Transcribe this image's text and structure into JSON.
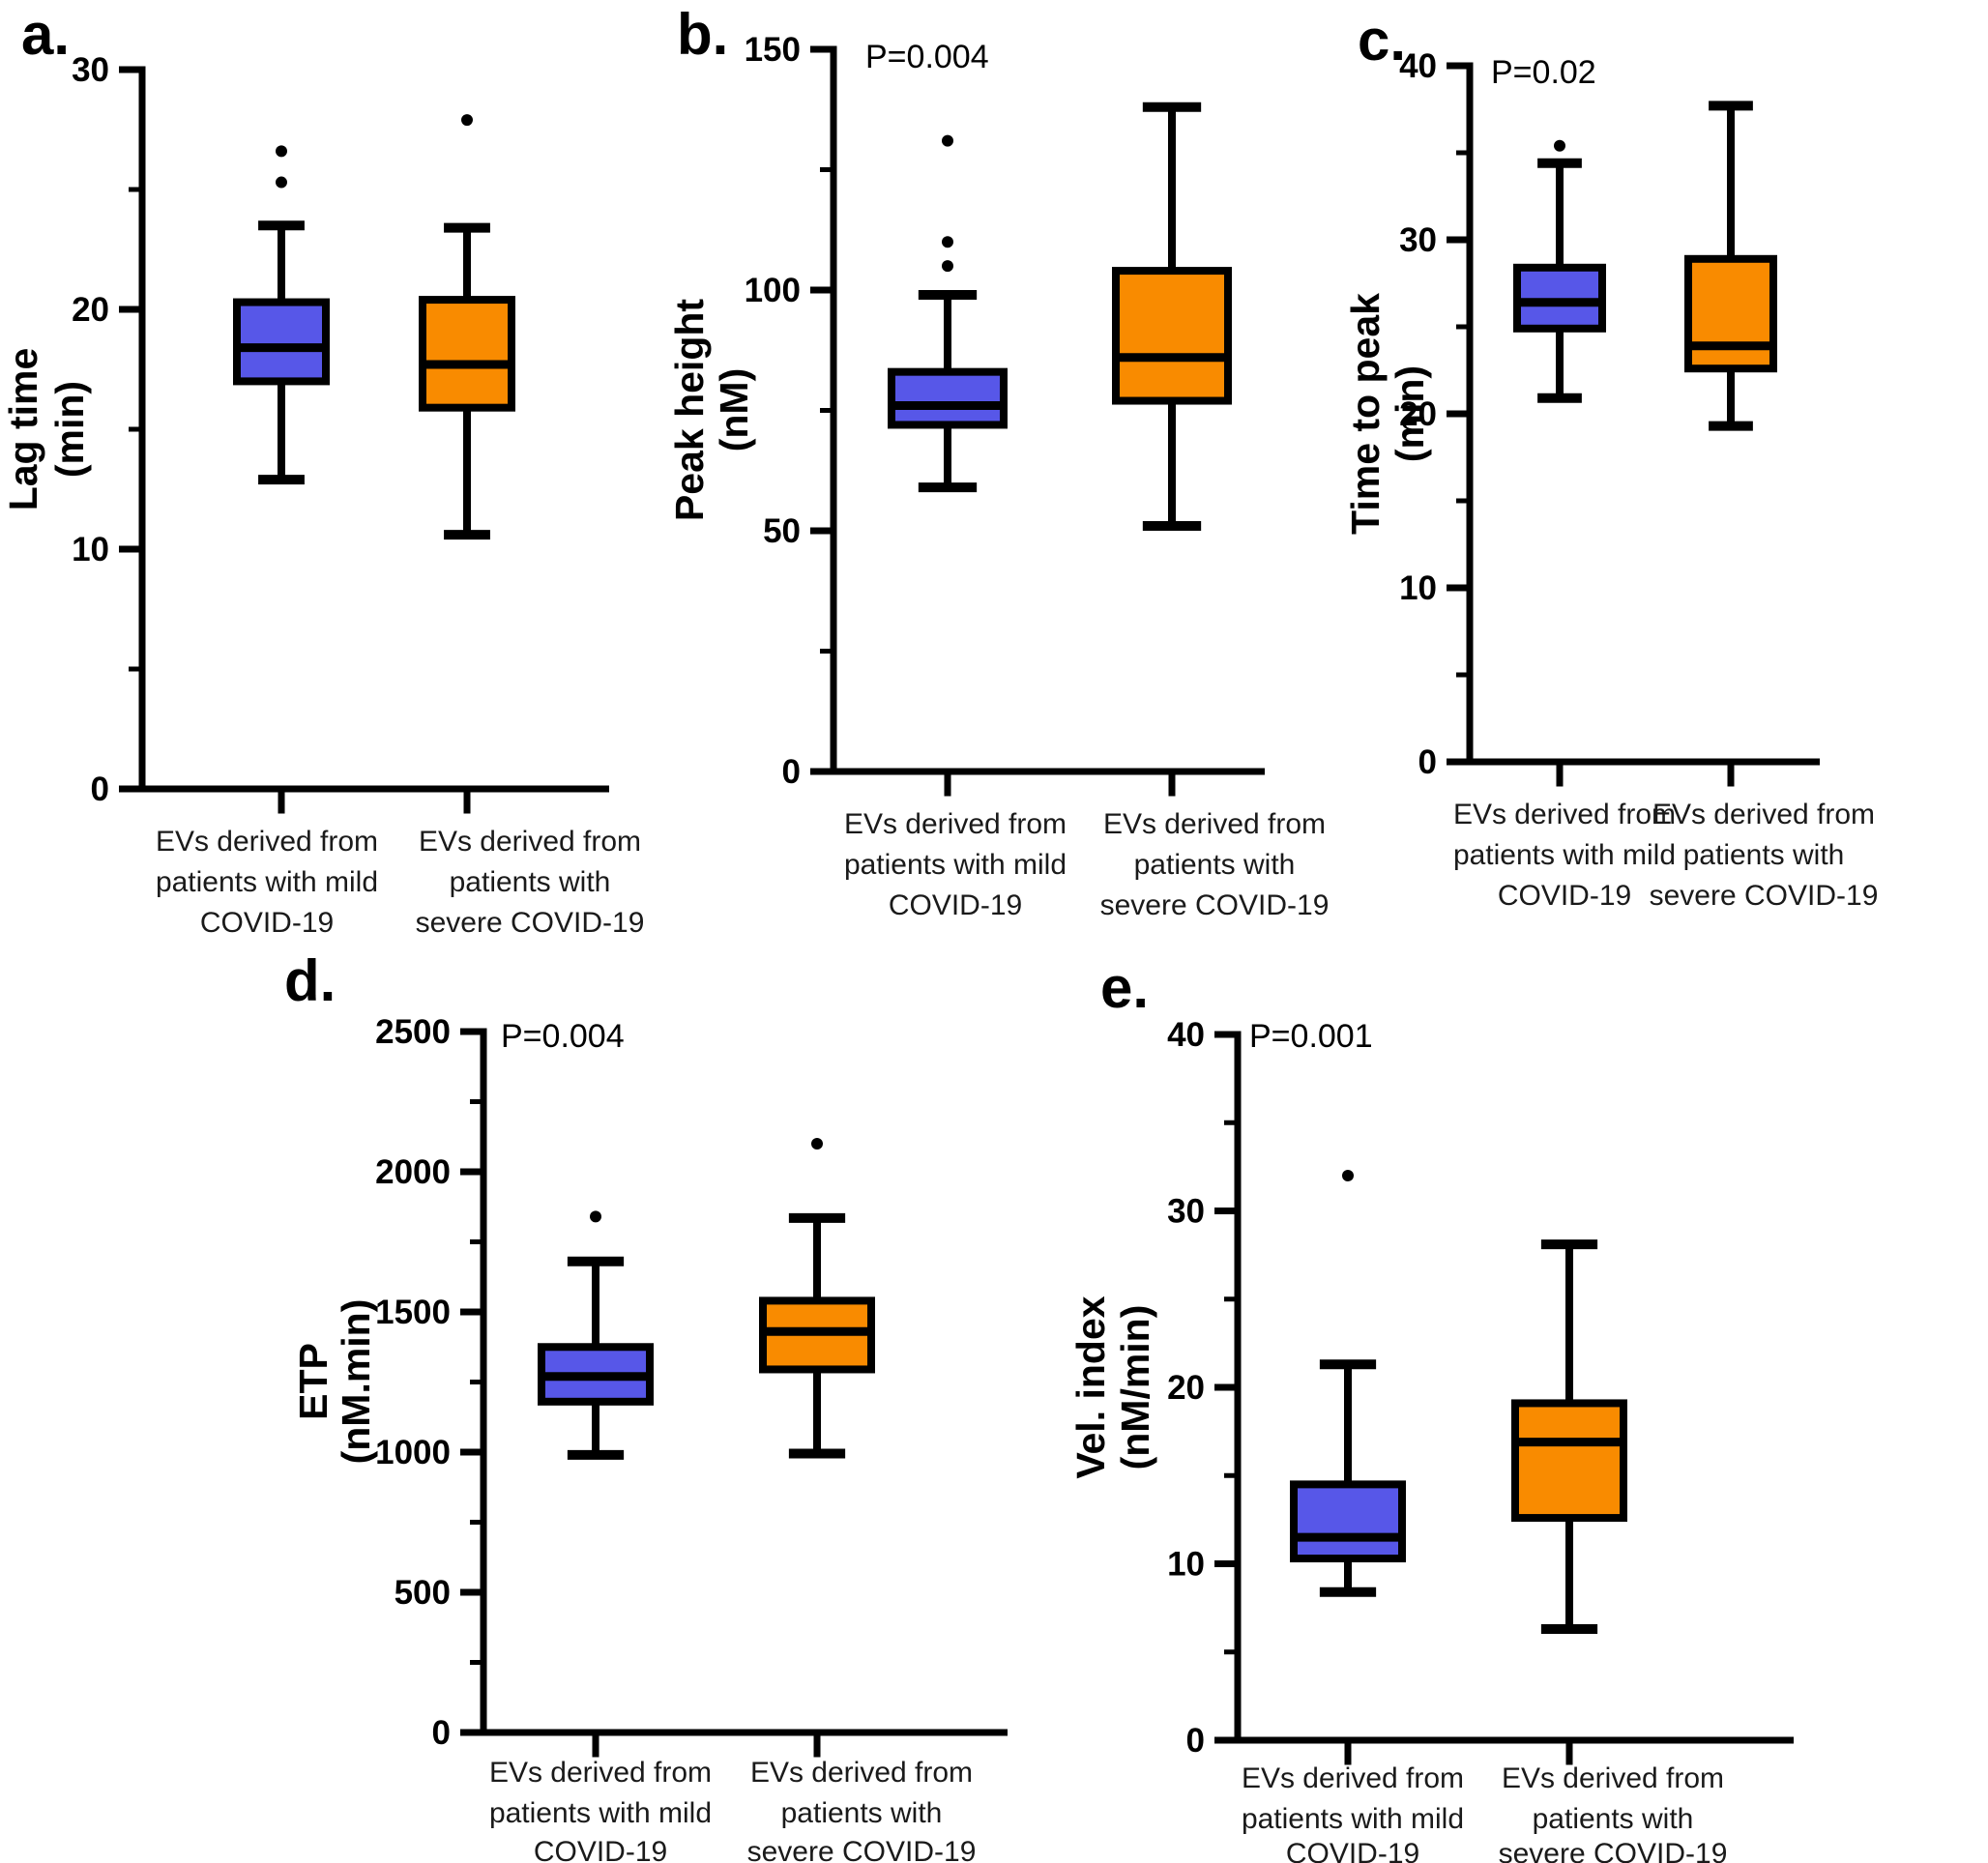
{
  "figure": {
    "background": "#ffffff",
    "colors": {
      "mild": "#5757e8",
      "severe": "#f98b00",
      "stroke": "#000000"
    },
    "group_labels": {
      "mild": [
        "EVs derived from",
        "patients with mild",
        "COVID-19"
      ],
      "severe": [
        "EVs derived from",
        "patients with",
        "severe COVID-19"
      ]
    }
  },
  "chart_data": [
    {
      "type": "box",
      "panel": "a",
      "panel_label": "a.",
      "p_value": null,
      "ylabel": "Lag time (min)",
      "ylabel_lines": [
        "Lag time",
        "(min)"
      ],
      "ylim": [
        0,
        30
      ],
      "yticks": [
        0,
        10,
        20,
        30
      ],
      "yticks_minor": [
        5,
        15,
        25
      ],
      "categories": [
        "EVs derived from patients with mild COVID-19",
        "EVs derived from patients with severe COVID-19"
      ],
      "series": [
        {
          "name": "EVs derived from patients with mild COVID-19",
          "key": "mild",
          "whisker_low": 12.9,
          "q1": 17.0,
          "median": 18.4,
          "q3": 20.3,
          "whisker_high": 23.5,
          "outliers": [
            25.3,
            26.6
          ]
        },
        {
          "name": "EVs derived from patients with severe COVID-19",
          "key": "severe",
          "whisker_low": 10.6,
          "q1": 15.9,
          "median": 17.7,
          "q3": 20.4,
          "whisker_high": 23.4,
          "outliers": [
            27.9
          ]
        }
      ]
    },
    {
      "type": "box",
      "panel": "b",
      "panel_label": "b.",
      "p_value": "P=0.004",
      "ylabel": "Peak height (nM)",
      "ylabel_lines": [
        "Peak height",
        "(nM)"
      ],
      "ylim": [
        0,
        150
      ],
      "yticks": [
        0,
        50,
        100,
        150
      ],
      "yticks_minor": [
        25,
        75,
        125
      ],
      "categories": [
        "EVs derived from patients with mild COVID-19",
        "EVs derived from patients with severe COVID-19"
      ],
      "series": [
        {
          "name": "EVs derived from patients with mild COVID-19",
          "key": "mild",
          "whisker_low": 59,
          "q1": 72,
          "median": 76,
          "q3": 83,
          "whisker_high": 99,
          "outliers": [
            105,
            110,
            131
          ]
        },
        {
          "name": "EVs derived from patients with severe COVID-19",
          "key": "severe",
          "whisker_low": 51,
          "q1": 77,
          "median": 86,
          "q3": 104,
          "whisker_high": 138,
          "outliers": []
        }
      ]
    },
    {
      "type": "box",
      "panel": "c",
      "panel_label": "c.",
      "p_value": "P=0.02",
      "ylabel": "Time to peak (min)",
      "ylabel_lines": [
        "Time to peak",
        "(min)"
      ],
      "ylim": [
        0,
        40
      ],
      "yticks": [
        0,
        10,
        20,
        30,
        40
      ],
      "yticks_minor": [
        5,
        15,
        25,
        35
      ],
      "categories": [
        "EVs derived from patients with mild COVID-19",
        "EVs derived from patients with severe COVID-19"
      ],
      "series": [
        {
          "name": "EVs derived from patients with mild COVID-19",
          "key": "mild",
          "whisker_low": 20.9,
          "q1": 24.9,
          "median": 26.4,
          "q3": 28.4,
          "whisker_high": 34.4,
          "outliers": [
            35.4
          ]
        },
        {
          "name": "EVs derived from patients with severe COVID-19",
          "key": "severe",
          "whisker_low": 19.3,
          "q1": 22.6,
          "median": 23.9,
          "q3": 28.9,
          "whisker_high": 37.7,
          "outliers": []
        }
      ]
    },
    {
      "type": "box",
      "panel": "d",
      "panel_label": "d.",
      "p_value": "P=0.004",
      "ylabel": "ETP (nM.min)",
      "ylabel_lines": [
        "ETP",
        "(nM.min)"
      ],
      "ylim": [
        0,
        2500
      ],
      "yticks": [
        0,
        500,
        1000,
        1500,
        2000,
        2500
      ],
      "yticks_minor": [
        250,
        750,
        1250,
        1750,
        2250
      ],
      "categories": [
        "EVs derived from patients with mild COVID-19",
        "EVs derived from patients with severe COVID-19"
      ],
      "series": [
        {
          "name": "EVs derived from patients with mild COVID-19",
          "key": "mild",
          "whisker_low": 990,
          "q1": 1180,
          "median": 1270,
          "q3": 1375,
          "whisker_high": 1680,
          "outliers": [
            1840
          ]
        },
        {
          "name": "EVs derived from patients with severe COVID-19",
          "key": "severe",
          "whisker_low": 995,
          "q1": 1295,
          "median": 1430,
          "q3": 1540,
          "whisker_high": 1835,
          "outliers": [
            2100
          ]
        }
      ]
    },
    {
      "type": "box",
      "panel": "e",
      "panel_label": "e.",
      "p_value": "P=0.001",
      "ylabel": "Vel. index (nM/min)",
      "ylabel_lines": [
        "Vel. index",
        "(nM/min)"
      ],
      "ylim": [
        0,
        40
      ],
      "yticks": [
        0,
        10,
        20,
        30,
        40
      ],
      "yticks_minor": [
        5,
        15,
        25,
        35
      ],
      "categories": [
        "EVs derived from patients with mild COVID-19",
        "EVs derived from patients with severe COVID-19"
      ],
      "series": [
        {
          "name": "EVs derived from patients with mild COVID-19",
          "key": "mild",
          "whisker_low": 8.4,
          "q1": 10.3,
          "median": 11.5,
          "q3": 14.5,
          "whisker_high": 21.3,
          "outliers": [
            32
          ]
        },
        {
          "name": "EVs derived from patients with severe COVID-19",
          "key": "severe",
          "whisker_low": 6.3,
          "q1": 12.6,
          "median": 16.9,
          "q3": 19.1,
          "whisker_high": 28.1,
          "outliers": []
        }
      ]
    }
  ]
}
